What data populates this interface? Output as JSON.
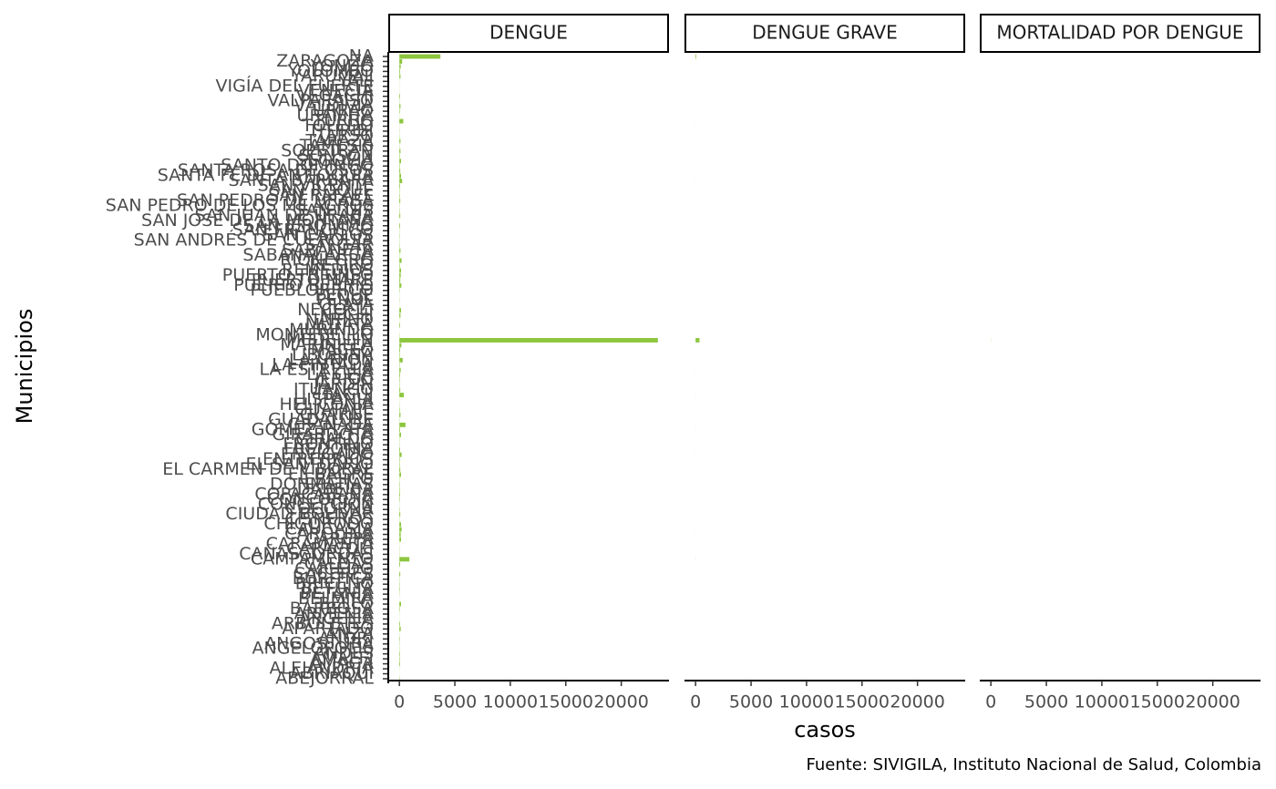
{
  "chart_data": {
    "type": "bar",
    "orientation": "horizontal",
    "xlabel": "casos",
    "ylabel": "Municipios",
    "caption": "Fuente: SIVIGILA, Instituto Nacional de Salud, Colombia",
    "categories": [
      "ABEJORRAL",
      "ABRIAQUÍ",
      "ALEJANDRÍA",
      "AMAGÁ",
      "AMALFI",
      "ANDES",
      "ANGELÓPOLIS",
      "ANGOSTURA",
      "ANORÍ",
      "ANZÁ",
      "APARTADÓ",
      "ARBOLETES",
      "ARGELIA",
      "ARMENIA",
      "BARBOSA",
      "BELLO",
      "BELMIRA",
      "BETANIA",
      "BETULIA",
      "BRICEÑO",
      "BURITICÁ",
      "CÁCERES",
      "CAICEDO",
      "CALDAS",
      "CAMPAMENTO",
      "CAÑASGORDAS",
      "CARACOLÍ",
      "CARAMANTA",
      "CAREPA",
      "CAROLINA",
      "CAUCASIA",
      "CHIGORODÓ",
      "CISNEROS",
      "CIUDAD BOLÍVAR",
      "COCORNÁ",
      "CONCEPCIÓN",
      "CONCORDIA",
      "COPACABANA",
      "DABEIBA",
      "DONMATÍAS",
      "EBÉJICO",
      "EL BAGRE",
      "EL CARMEN DE VIBORAL",
      "EL SANTUARIO",
      "ENTRERRÍOS",
      "ENVIGADO",
      "FREDONIA",
      "FRONTINO",
      "GIRALDO",
      "GIRARDOTA",
      "GÓMEZ PLATA",
      "GRANADA",
      "GUADALUPE",
      "GUARNE",
      "GUATAPÉ",
      "HELICONIA",
      "HISPANIA",
      "ITAGÜÍ",
      "ITUANGO",
      "JARDÍN",
      "JERICÓ",
      "LA CEJA",
      "LA ESTRELLA",
      "LA PINTADA",
      "LA UNIÓN",
      "LIBORINA",
      "MACEO",
      "MARINILLA",
      "MEDELLÍN",
      "MONTEBELLO",
      "MURINDÓ",
      "MUTATÁ",
      "NARIÑO",
      "NECHÍ",
      "NECOCLÍ",
      "OLAYA",
      "PEÑOL",
      "PEQUE",
      "PUEBLORRICO",
      "PUERTO BERRÍO",
      "PUERTO NARE",
      "PUERTO TRIUNFO",
      "REMEDIOS",
      "RETIRO",
      "RIONEGRO",
      "SABANALARGA",
      "SABANETA",
      "SALGAR",
      "SAN ANDRÉS DE CUERQUÍA",
      "SAN CARLOS",
      "SAN FRANCISCO",
      "SAN JERÓNIMO",
      "SAN JOSÉ DE LA MONTAÑA",
      "SAN JUAN DE URABÁ",
      "SAN LUIS",
      "SAN PEDRO DE LOS MILAGROS",
      "SAN PEDRO DE URABÁ",
      "SAN RAFAEL",
      "SAN ROQUE",
      "SAN VICENTE",
      "SANTA BÁRBARA",
      "SANTA FÉ DE ANTIOQUIA",
      "SANTA ROSA DE OSOS",
      "SANTO DOMINGO",
      "SEGOVIA",
      "SONSÓN",
      "SOPETRÁN",
      "TÁMESIS",
      "TARAZÁ",
      "TARSO",
      "TITIRIBÍ",
      "TOLEDO",
      "TURBO",
      "URAMITA",
      "URRAO",
      "VALDIVIA",
      "VALPARAÍSO",
      "VEGACHÍ",
      "VENECIA",
      "VIGÍA DEL FUERTE",
      "YALÍ",
      "YARUMAL",
      "YOLOMBÓ",
      "YONDÓ",
      "ZARAGOZA",
      "NA"
    ],
    "series": [
      {
        "name": "DENGUE",
        "color": "#8dc63f",
        "values": [
          30,
          5,
          10,
          60,
          40,
          50,
          20,
          20,
          40,
          10,
          120,
          60,
          10,
          10,
          40,
          150,
          5,
          20,
          40,
          30,
          20,
          80,
          5,
          70,
          900,
          20,
          20,
          10,
          150,
          120,
          200,
          150,
          20,
          80,
          30,
          10,
          40,
          60,
          40,
          40,
          20,
          150,
          80,
          40,
          40,
          200,
          60,
          20,
          20,
          150,
          60,
          550,
          20,
          100,
          40,
          20,
          10,
          400,
          80,
          30,
          40,
          60,
          120,
          30,
          300,
          40,
          60,
          180,
          23300,
          20,
          5,
          60,
          10,
          100,
          150,
          10,
          20,
          10,
          30,
          180,
          80,
          120,
          150,
          40,
          200,
          20,
          100,
          30,
          20,
          30,
          20,
          60,
          5,
          80,
          30,
          20,
          80,
          40,
          30,
          60,
          250,
          150,
          80,
          40,
          150,
          40,
          100,
          20,
          100,
          20,
          20,
          10,
          350,
          10,
          40,
          100,
          20,
          60,
          10,
          10,
          10,
          100,
          60,
          120,
          250,
          3700
        ]
      },
      {
        "name": "DENGUE GRAVE",
        "color": "#8dc63f",
        "values": [
          0,
          0,
          0,
          0,
          0,
          0,
          0,
          0,
          0,
          0,
          2,
          0,
          0,
          0,
          0,
          3,
          0,
          0,
          0,
          0,
          0,
          1,
          0,
          0,
          10,
          0,
          0,
          0,
          2,
          1,
          3,
          2,
          0,
          0,
          0,
          0,
          0,
          0,
          0,
          0,
          0,
          2,
          1,
          0,
          0,
          4,
          0,
          0,
          0,
          2,
          0,
          6,
          0,
          1,
          0,
          0,
          0,
          5,
          1,
          0,
          0,
          1,
          2,
          0,
          4,
          0,
          0,
          3,
          350,
          0,
          0,
          0,
          0,
          1,
          2,
          0,
          0,
          0,
          0,
          2,
          1,
          2,
          2,
          0,
          3,
          0,
          1,
          0,
          0,
          0,
          0,
          1,
          0,
          1,
          0,
          0,
          1,
          0,
          0,
          0,
          3,
          2,
          1,
          0,
          2,
          0,
          1,
          0,
          1,
          0,
          0,
          0,
          5,
          0,
          0,
          1,
          0,
          0,
          0,
          0,
          0,
          1,
          0,
          1,
          3,
          60
        ]
      },
      {
        "name": "MORTALIDAD POR DENGUE",
        "color": "#8dc63f",
        "values": [
          0,
          0,
          0,
          0,
          0,
          0,
          0,
          0,
          0,
          0,
          0,
          0,
          0,
          0,
          0,
          0,
          0,
          0,
          0,
          0,
          0,
          0,
          0,
          0,
          0,
          0,
          0,
          0,
          0,
          0,
          0,
          0,
          0,
          0,
          0,
          0,
          0,
          0,
          0,
          0,
          0,
          0,
          0,
          0,
          0,
          0,
          0,
          0,
          0,
          0,
          0,
          0,
          0,
          0,
          0,
          0,
          0,
          0,
          0,
          0,
          0,
          0,
          0,
          0,
          0,
          0,
          0,
          0,
          10,
          0,
          0,
          0,
          0,
          0,
          0,
          0,
          0,
          0,
          0,
          0,
          0,
          0,
          0,
          0,
          0,
          0,
          0,
          0,
          0,
          0,
          0,
          0,
          0,
          0,
          0,
          0,
          0,
          0,
          0,
          0,
          0,
          0,
          0,
          0,
          0,
          0,
          0,
          0,
          0,
          0,
          0,
          0,
          0,
          0,
          0,
          0,
          0,
          0,
          0,
          0,
          0,
          0,
          0,
          0,
          0,
          0
        ]
      }
    ],
    "xlim": [
      -1000,
      24300
    ],
    "xticks": [
      0,
      5000,
      10000,
      15000,
      20000
    ]
  }
}
